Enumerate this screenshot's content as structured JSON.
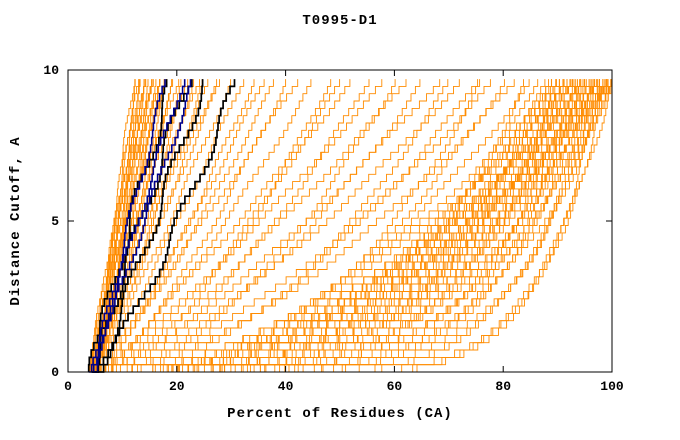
{
  "chart_data": {
    "type": "line",
    "title": "T0995-D1",
    "xlabel": "Percent of Residues (CA)",
    "ylabel": "Distance Cutoff, A",
    "xlim": [
      0,
      100
    ],
    "ylim": [
      0,
      10
    ],
    "x_ticks": [
      0,
      20,
      40,
      60,
      80,
      100
    ],
    "y_ticks": [
      0,
      5,
      10
    ],
    "grid": false,
    "legend": null,
    "y_top": 9.7,
    "x_start_range": [
      3.8,
      5.4
    ],
    "curve_note": "Each curve is a model GDT step-curve: x = percent of CA residues superimposable within distance cutoff y. Curves parameterized as x(y) = x_start + (x_end - x_start) * (y/9.7)^shape, each entry is [x_end, shape].",
    "series": [
      {
        "name": "orange-model-curves",
        "color": "#ff8c00",
        "stroke_width": 0.9,
        "wiggle": 0.35,
        "curves": [
          [
            100,
            0.14
          ],
          [
            99,
            0.18
          ],
          [
            100,
            0.22
          ],
          [
            98,
            0.16
          ],
          [
            99,
            0.25
          ],
          [
            100,
            0.3
          ],
          [
            97,
            0.2
          ],
          [
            98,
            0.28
          ],
          [
            99,
            0.33
          ],
          [
            100,
            0.38
          ],
          [
            96,
            0.18
          ],
          [
            97,
            0.26
          ],
          [
            98,
            0.35
          ],
          [
            96,
            0.4
          ],
          [
            95,
            0.22
          ],
          [
            95,
            0.3
          ],
          [
            94,
            0.26
          ],
          [
            94,
            0.36
          ],
          [
            93,
            0.2
          ],
          [
            93,
            0.32
          ],
          [
            92,
            0.24
          ],
          [
            92,
            0.38
          ],
          [
            91,
            0.28
          ],
          [
            91,
            0.42
          ],
          [
            90,
            0.22
          ],
          [
            90,
            0.34
          ],
          [
            89,
            0.3
          ],
          [
            89,
            0.44
          ],
          [
            88,
            0.26
          ],
          [
            88,
            0.4
          ],
          [
            100,
            0.45
          ],
          [
            99,
            0.4
          ],
          [
            98,
            0.44
          ],
          [
            97,
            0.36
          ],
          [
            96,
            0.3
          ],
          [
            95,
            0.42
          ],
          [
            94,
            0.46
          ],
          [
            93,
            0.44
          ],
          [
            92,
            0.3
          ],
          [
            91,
            0.35
          ],
          [
            90,
            0.45
          ],
          [
            96,
            0.5
          ],
          [
            98,
            0.52
          ],
          [
            99,
            0.48
          ],
          [
            97,
            0.55
          ],
          [
            95,
            0.5
          ],
          [
            93,
            0.55
          ],
          [
            100,
            0.26
          ],
          [
            99,
            0.13
          ],
          [
            98,
            0.12
          ],
          [
            97,
            0.15
          ],
          [
            100,
            0.5
          ],
          [
            94,
            0.18
          ],
          [
            92,
            0.5
          ],
          [
            90,
            0.55
          ],
          [
            85,
            0.5
          ],
          [
            82,
            0.6
          ],
          [
            80,
            0.45
          ],
          [
            78,
            0.65
          ],
          [
            75,
            0.55
          ],
          [
            72,
            0.7
          ],
          [
            70,
            0.5
          ],
          [
            68,
            0.75
          ],
          [
            65,
            0.6
          ],
          [
            62,
            0.8
          ],
          [
            60,
            0.55
          ],
          [
            58,
            0.85
          ],
          [
            55,
            0.65
          ],
          [
            52,
            0.9
          ],
          [
            50,
            0.7
          ],
          [
            48,
            0.6
          ],
          [
            45,
            0.8
          ],
          [
            42,
            0.95
          ],
          [
            40,
            0.7
          ],
          [
            38,
            0.85
          ],
          [
            86,
            0.35
          ],
          [
            84,
            0.3
          ],
          [
            36,
            0.9
          ],
          [
            34,
            0.8
          ],
          [
            76,
            0.4
          ],
          [
            32,
            0.85
          ],
          [
            30,
            0.95
          ],
          [
            28,
            1.0
          ],
          [
            27,
            0.9
          ],
          [
            25,
            1.0
          ],
          [
            24,
            1.05
          ],
          [
            23,
            0.95
          ],
          [
            26,
            1.1
          ],
          [
            12,
            1.0
          ],
          [
            12.5,
            1.05
          ],
          [
            13,
            0.95
          ],
          [
            13,
            1.1
          ],
          [
            13.5,
            1.0
          ],
          [
            14,
            1.05
          ],
          [
            14,
            0.9
          ],
          [
            14.5,
            1.1
          ],
          [
            15,
            1.0
          ],
          [
            15,
            1.15
          ],
          [
            15.5,
            0.95
          ],
          [
            16,
            1.05
          ],
          [
            16,
            1.2
          ],
          [
            16.5,
            1.0
          ],
          [
            17,
            1.1
          ],
          [
            17,
            0.95
          ],
          [
            17.5,
            1.05
          ],
          [
            18,
            1.0
          ],
          [
            18,
            1.15
          ],
          [
            19,
            1.05
          ],
          [
            19.5,
            0.95
          ],
          [
            20,
            1.1
          ],
          [
            21,
            1.0
          ],
          [
            22,
            1.05
          ],
          [
            13.8,
            1.0
          ]
        ]
      },
      {
        "name": "black-model-curves",
        "color": "#000000",
        "stroke_width": 1.7,
        "wiggle": 0.9,
        "curves": [
          [
            19,
            1.1
          ],
          [
            22,
            1.0
          ],
          [
            25,
            0.95
          ],
          [
            31,
            0.8
          ]
        ]
      },
      {
        "name": "blue-model-curves",
        "color": "#00008b",
        "stroke_width": 1.6,
        "wiggle": 0.5,
        "curves": [
          [
            18,
            1.1
          ],
          [
            21,
            1.05
          ],
          [
            23,
            0.98
          ]
        ]
      }
    ]
  }
}
